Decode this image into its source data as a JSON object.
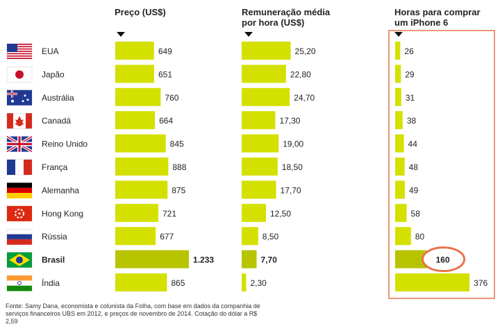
{
  "headers": {
    "price": "Preço (US$)",
    "wage_line1": "Remuneração média",
    "wage_line2": "por hora (US$)",
    "hours_line1": "Horas para comprar",
    "hours_line2": "um iPhone 6"
  },
  "source": "Fonte: Samy Dana, economista e colunista da Folha, com base em dados da companhia de serviços financeiros UBS em 2012, e preços de novembro de 2014. Cotação do dólar a R$ 2,59",
  "colors": {
    "bar": "#d4e000",
    "bar_highlight": "#b8c400",
    "highlight_box": "#e8734a",
    "circle": "#e8734a"
  },
  "icons": [
    "flag-usa-icon",
    "flag-japan-icon",
    "flag-australia-icon",
    "flag-canada-icon",
    "flag-uk-icon",
    "flag-france-icon",
    "flag-germany-icon",
    "flag-hongkong-icon",
    "flag-russia-icon",
    "flag-brazil-icon",
    "flag-india-icon"
  ],
  "chart_data": {
    "type": "bar",
    "categories": [
      "EUA",
      "Japão",
      "Austrália",
      "Canadá",
      "Reino Unido",
      "França",
      "Alemanha",
      "Hong Kong",
      "Rússia",
      "Brasil",
      "Índia"
    ],
    "highlight_category": "Brasil",
    "series": [
      {
        "name": "Preço (US$)",
        "values": [
          649,
          651,
          760,
          664,
          845,
          888,
          875,
          721,
          677,
          1233,
          865
        ],
        "labels": [
          "649",
          "651",
          "760",
          "664",
          "845",
          "888",
          "875",
          "721",
          "677",
          "1.233",
          "865"
        ]
      },
      {
        "name": "Remuneração média por hora (US$)",
        "values": [
          25.2,
          22.8,
          24.7,
          17.3,
          19.0,
          18.5,
          17.7,
          12.5,
          8.5,
          7.7,
          2.3
        ],
        "labels": [
          "25,20",
          "22,80",
          "24,70",
          "17,30",
          "19,00",
          "18,50",
          "17,70",
          "12,50",
          "8,50",
          "7,70",
          "2,30"
        ]
      },
      {
        "name": "Horas para comprar um iPhone 6",
        "values": [
          26,
          29,
          31,
          38,
          44,
          48,
          49,
          58,
          80,
          160,
          376
        ],
        "labels": [
          "26",
          "29",
          "31",
          "38",
          "44",
          "48",
          "49",
          "58",
          "80",
          "160",
          "376"
        ]
      }
    ]
  }
}
